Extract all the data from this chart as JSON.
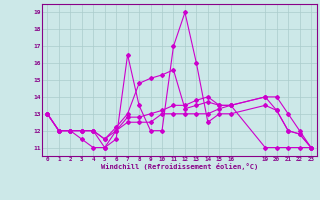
{
  "xlabel": "Windchill (Refroidissement éolien,°C)",
  "bg_color": "#cce8e8",
  "grid_color": "#aacccc",
  "line_color": "#cc00cc",
  "spine_color": "#880088",
  "xlim": [
    -0.5,
    23.5
  ],
  "ylim": [
    10.5,
    19.5
  ],
  "yticks": [
    11,
    12,
    13,
    14,
    15,
    16,
    17,
    18,
    19
  ],
  "xticks": [
    0,
    1,
    2,
    3,
    4,
    5,
    6,
    7,
    8,
    9,
    10,
    11,
    12,
    13,
    14,
    15,
    16,
    19,
    20,
    21,
    22,
    23
  ],
  "series1_x": [
    0,
    1,
    2,
    3,
    4,
    5,
    6,
    7,
    8,
    9,
    10,
    11,
    12,
    13,
    14,
    15,
    16,
    19,
    20,
    21,
    22,
    23
  ],
  "series1_y": [
    13,
    12,
    12,
    11.5,
    11,
    11,
    11.5,
    16.5,
    13.5,
    12,
    12,
    17,
    19,
    16,
    12.5,
    13,
    13,
    13.5,
    13.2,
    12,
    11.8,
    11
  ],
  "series2_x": [
    0,
    1,
    2,
    3,
    4,
    5,
    6,
    7,
    8,
    9,
    10,
    11,
    12,
    13,
    14,
    15,
    16,
    19,
    20,
    21,
    22,
    23
  ],
  "series2_y": [
    13,
    12,
    12,
    12,
    12,
    11,
    12,
    12.5,
    12.5,
    12.5,
    13,
    13,
    13,
    13,
    13,
    13.3,
    13.5,
    11,
    11,
    11,
    11,
    11
  ],
  "series3_x": [
    0,
    1,
    2,
    3,
    4,
    5,
    6,
    7,
    8,
    9,
    10,
    11,
    12,
    13,
    14,
    15,
    16,
    19,
    20,
    21,
    22,
    23
  ],
  "series3_y": [
    13,
    12,
    12,
    12,
    12,
    11.5,
    12.2,
    13,
    14.8,
    15.1,
    15.3,
    15.6,
    13.3,
    13.5,
    13.7,
    13.5,
    13.5,
    14,
    13.2,
    12,
    11.8,
    11
  ],
  "series4_x": [
    0,
    1,
    2,
    3,
    4,
    5,
    6,
    7,
    8,
    9,
    10,
    11,
    12,
    13,
    14,
    15,
    16,
    19,
    20,
    21,
    22,
    23
  ],
  "series4_y": [
    13,
    12,
    12,
    12,
    12,
    11.5,
    12,
    12.8,
    12.8,
    13,
    13.2,
    13.5,
    13.5,
    13.8,
    14,
    13.5,
    13.5,
    14,
    14,
    13,
    12,
    11
  ]
}
